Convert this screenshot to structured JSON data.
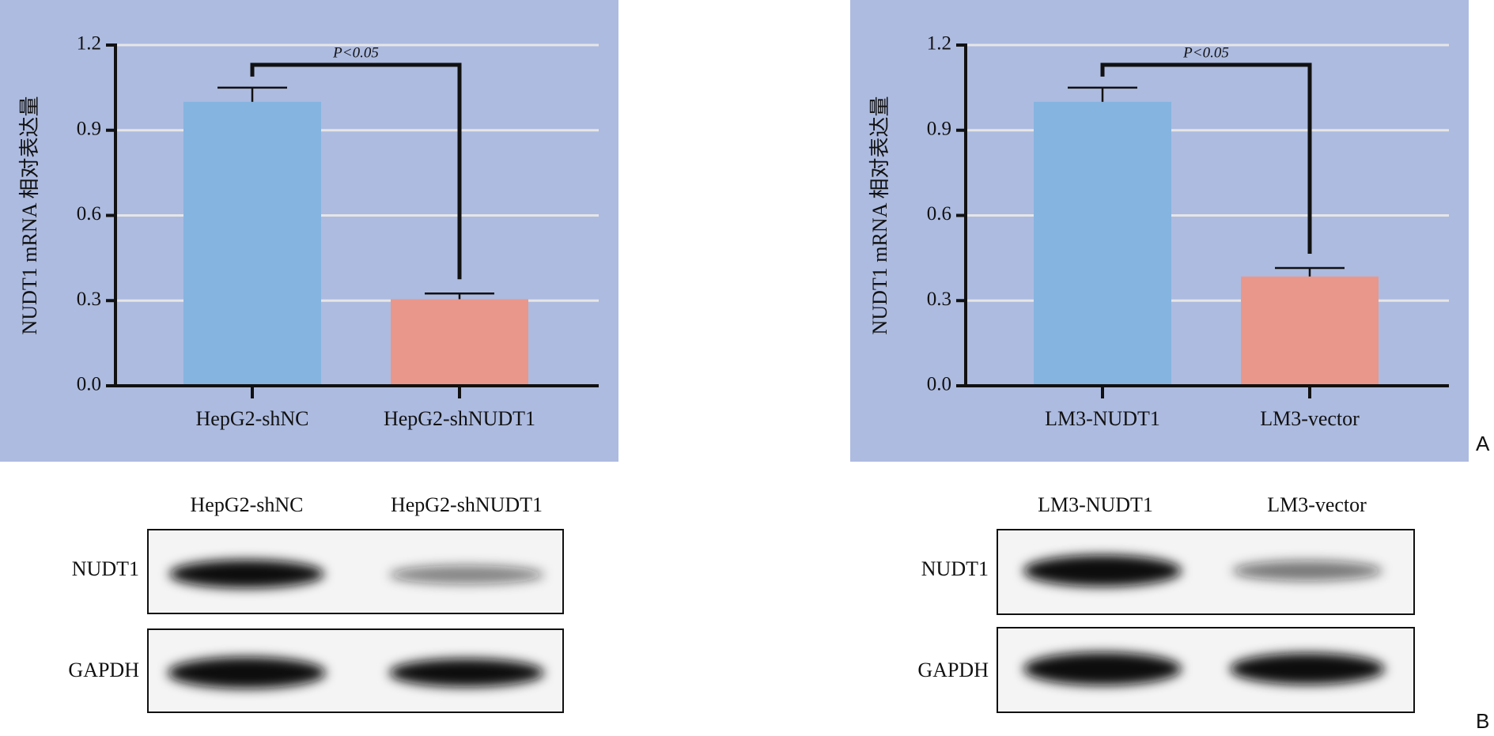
{
  "chart_data": [
    {
      "type": "bar",
      "y_label": "NUDT1 mRNA 相对表达量",
      "annotation": "P<0.05",
      "categories": [
        "HepG2-shNC",
        "HepG2-shNUDT1"
      ],
      "values": [
        1.0,
        0.305
      ],
      "errors": [
        0.05,
        0.02
      ],
      "colors": [
        "#85b4e0",
        "#e9978a"
      ],
      "ylim": [
        0,
        1.2
      ],
      "yticks": [
        {
          "value": 0,
          "label": "0.0"
        },
        0.3,
        0.6,
        0.9,
        1.2
      ],
      "grid": true
    },
    {
      "type": "bar",
      "y_label": "NUDT1 mRNA 相对表达量",
      "annotation": "P<0.05",
      "categories": [
        "LM3-NUDT1",
        "LM3-vector"
      ],
      "values": [
        1.0,
        0.385
      ],
      "errors": [
        0.05,
        0.03
      ],
      "colors": [
        "#85b4e0",
        "#e9978a"
      ],
      "ylim": [
        0,
        1.2
      ],
      "yticks": [
        {
          "value": 0,
          "label": "0.0"
        },
        0.3,
        0.6,
        0.9,
        1.2
      ],
      "grid": true
    }
  ],
  "blots": [
    {
      "lanes": [
        "HepG2-shNC",
        "HepG2-shNUDT1"
      ],
      "rows": [
        "NUDT1",
        "GAPDH"
      ]
    },
    {
      "lanes": [
        "LM3-NUDT1",
        "LM3-vector"
      ],
      "rows": [
        "NUDT1",
        "GAPDH"
      ]
    }
  ],
  "panel_labels": [
    "A",
    "B"
  ]
}
